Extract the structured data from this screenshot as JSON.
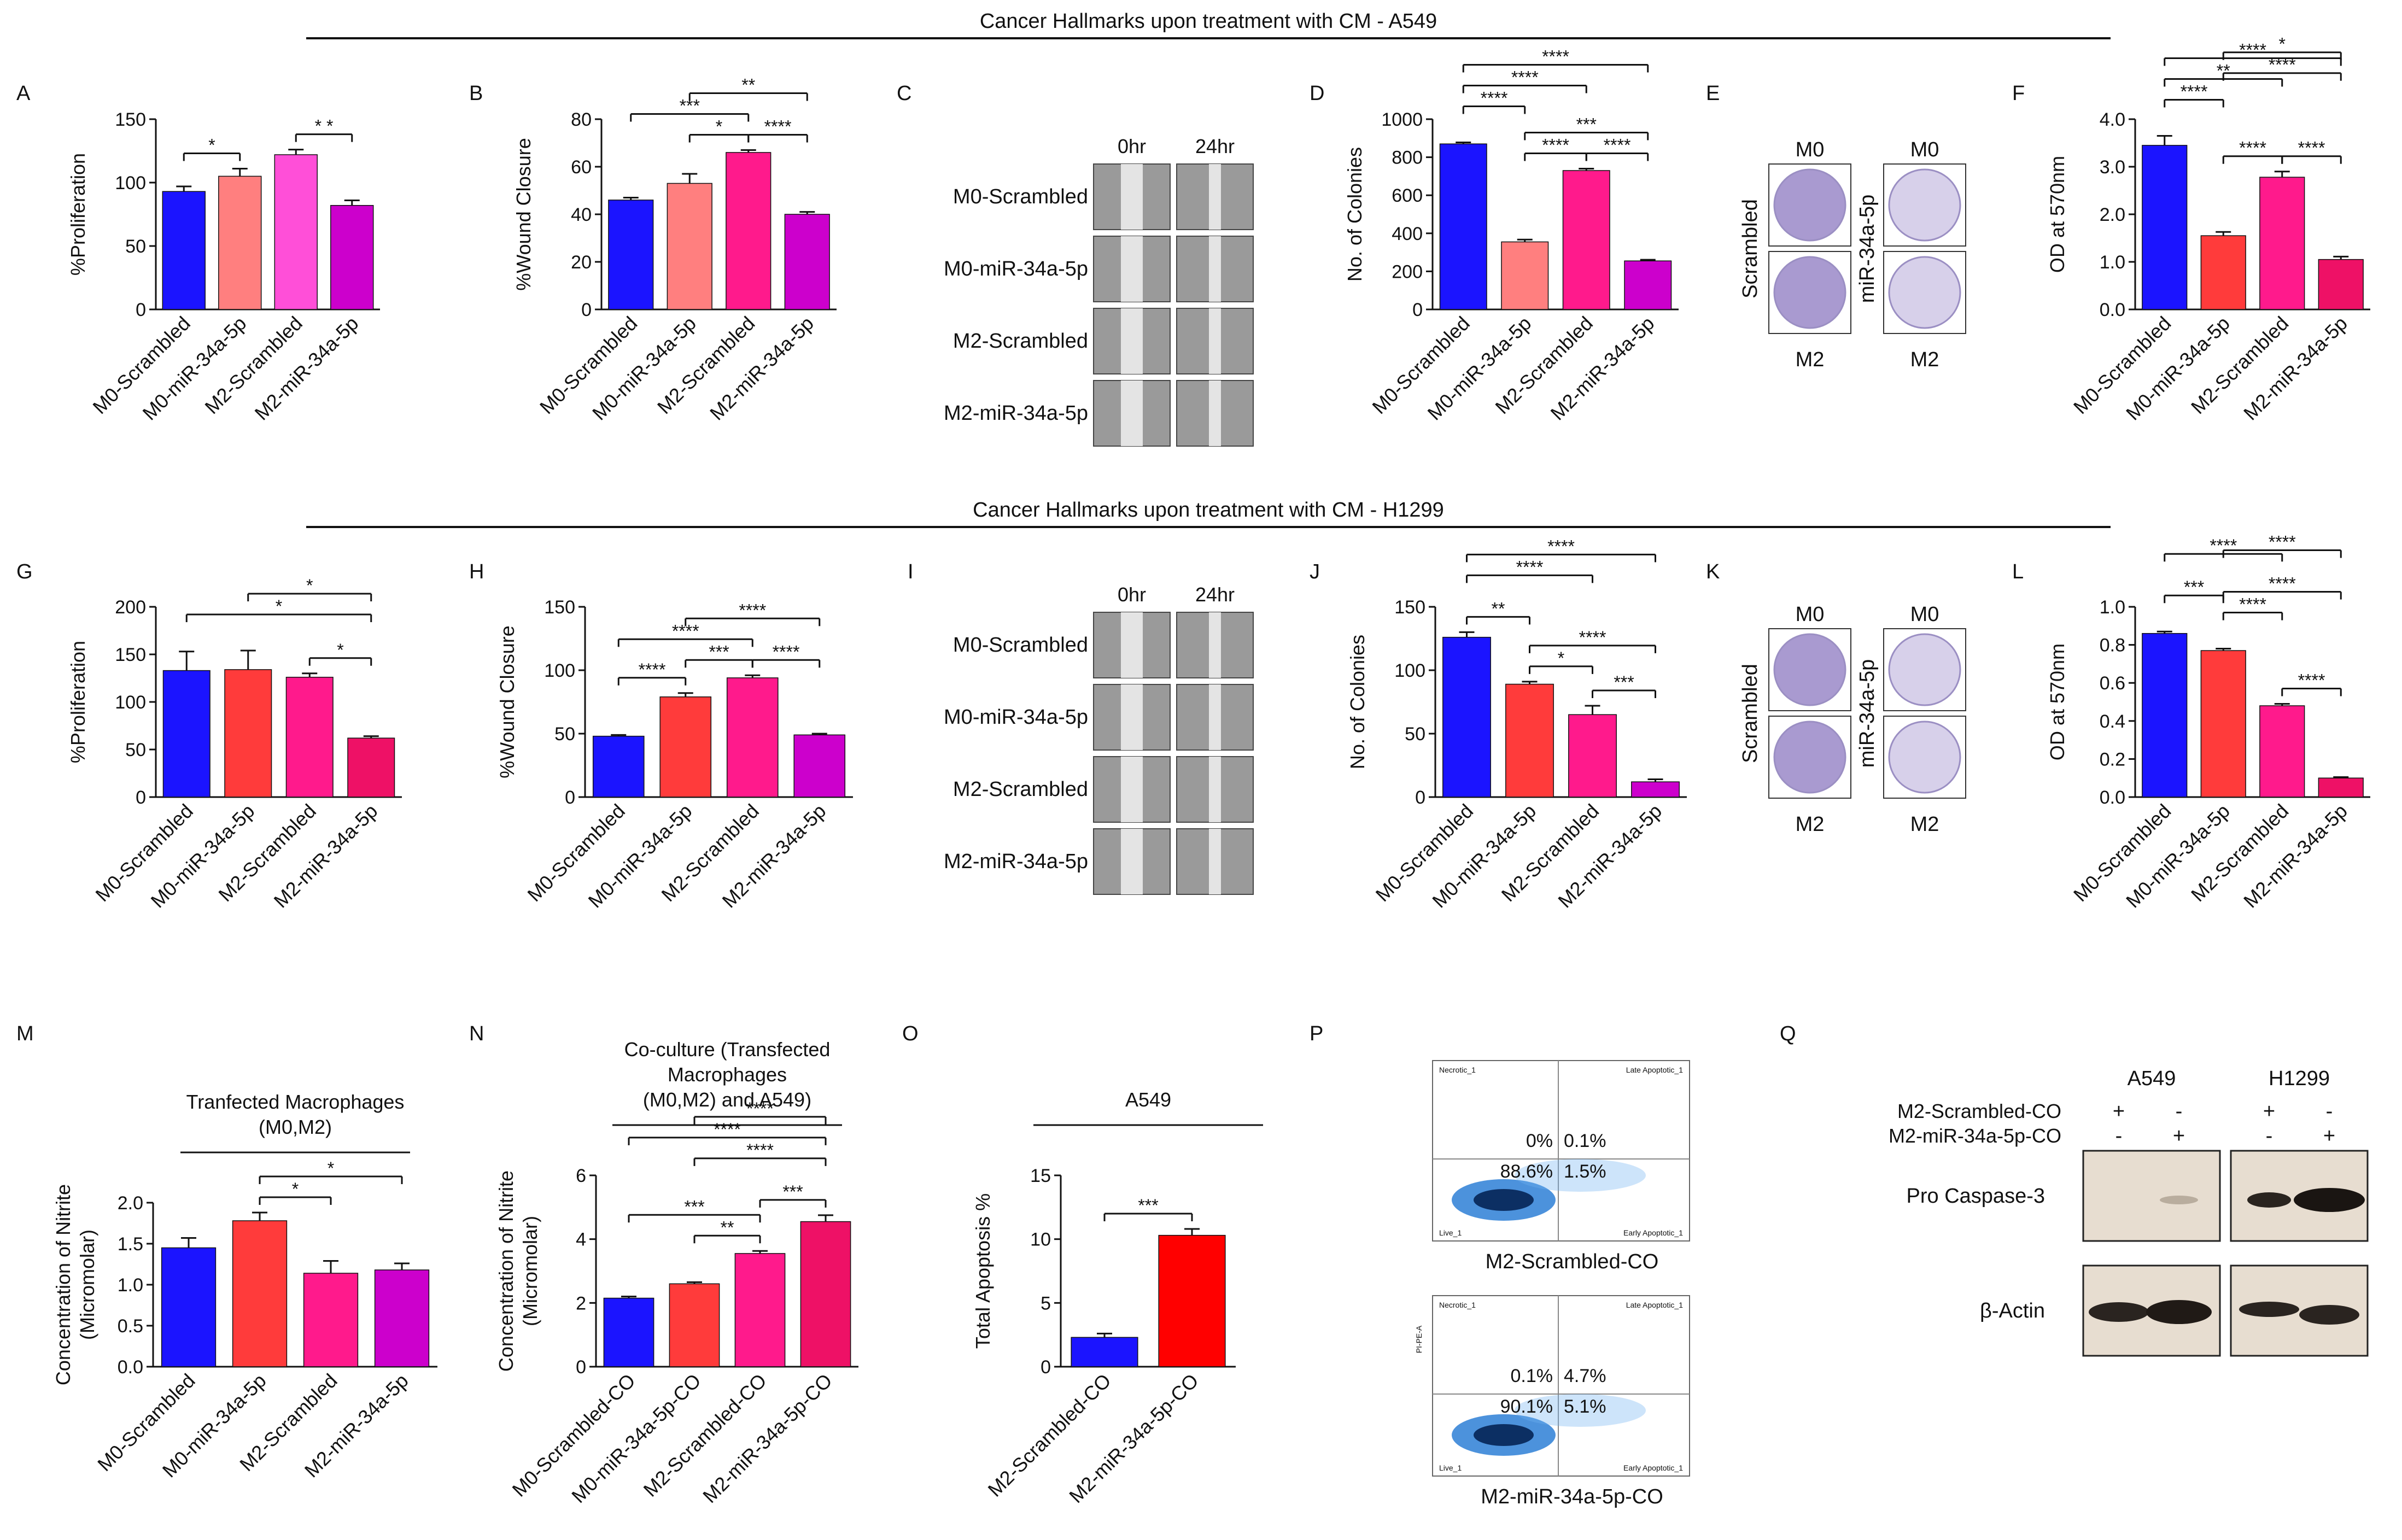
{
  "section_titles": {
    "a549": "Cancer Hallmarks upon treatment with CM - A549",
    "h1299": "Cancer Hallmarks upon treatment with CM - H1299"
  },
  "panel_letters": [
    "A",
    "B",
    "C",
    "D",
    "E",
    "F",
    "G",
    "H",
    "I",
    "J",
    "K",
    "L",
    "M",
    "N",
    "O",
    "P",
    "Q"
  ],
  "colors": {
    "blue": "#1b14ff",
    "salmon": "#ff7f7f",
    "pink": "#ff4fd8",
    "magenta": "#cc00cc",
    "red": "#ff3b3b",
    "hotpink": "#ff1a8c",
    "deeppink": "#ee1166",
    "purple": "#b300b3",
    "pure_red": "#ff0000"
  },
  "wound_images_a549": {
    "time_labels": [
      "0hr",
      "24hr"
    ],
    "row_labels": [
      "M0-Scrambled",
      "M0-miR-34a-5p",
      "M2-Scrambled",
      "M2-miR-34a-5p"
    ]
  },
  "wound_images_h1299": {
    "time_labels": [
      "0hr",
      "24hr"
    ],
    "row_labels": [
      "M0-Scrambled",
      "M0-miR-34a-5p",
      "M2-Scrambled",
      "M2-miR-34a-5p"
    ]
  },
  "colony_images_a549": {
    "top_labels": [
      "M0",
      "M0"
    ],
    "bottom_labels": [
      "M2",
      "M2"
    ],
    "left_label": "Scrambled",
    "mid_label": "miR-34a-5p"
  },
  "colony_images_h1299": {
    "top_labels": [
      "M0",
      "M0"
    ],
    "bottom_labels": [
      "M2",
      "M2"
    ],
    "left_label": "Scrambled",
    "mid_label": "miR-34a-5p"
  },
  "flow": {
    "top": {
      "caption": "M2-Scrambled-CO",
      "q_ul": "0%",
      "q_ur": "0.1%",
      "q_ll": "88.6%",
      "q_lr": "1.5%",
      "necrotic": "Necrotic_1",
      "late": "Late Apoptotic_1",
      "early": "Early Apoptotic_1",
      "live": "Live_1"
    },
    "bottom": {
      "caption": "M2-miR-34a-5p-CO",
      "q_ul": "0.1%",
      "q_ur": "4.7%",
      "q_ll": "90.1%",
      "q_lr": "5.1%",
      "necrotic": "Necrotic_1",
      "late": "Late Apoptotic_1",
      "early": "Early Apoptotic_1",
      "live": "Live_1",
      "yaxis": "PI-PE-A"
    }
  },
  "western": {
    "cell_lines": [
      "A549",
      "H1299"
    ],
    "row1_label": "M2-Scrambled-CO",
    "row2_label": "M2-miR-34a-5p-CO",
    "row1_signs": [
      "+",
      "-",
      "+",
      "-"
    ],
    "row2_signs": [
      "-",
      "+",
      "-",
      "+"
    ],
    "band_labels": [
      "Pro Caspase-3",
      "β-Actin"
    ]
  },
  "chart_data": [
    {
      "id": "A",
      "type": "bar",
      "categories": [
        "M0-Scrambled",
        "M0-miR-34a-5p",
        "M2-Scrambled",
        "M2-miR-34a-5p"
      ],
      "values": [
        93,
        105,
        122,
        82
      ],
      "errors": [
        4,
        6,
        4,
        4
      ],
      "ylabel": "%Proliferation",
      "ylim": [
        0,
        150
      ],
      "yticks": [
        0,
        50,
        100,
        150
      ],
      "colors": [
        "#1b14ff",
        "#ff7f7f",
        "#ff4fd8",
        "#cc00cc"
      ],
      "sig": [
        {
          "a": 0,
          "b": 1,
          "label": "*",
          "level": 0
        },
        {
          "a": 2,
          "b": 3,
          "label": "* *",
          "level": 0
        }
      ]
    },
    {
      "id": "B",
      "type": "bar",
      "categories": [
        "M0-Scrambled",
        "M0-miR-34a-5p",
        "M2-Scrambled",
        "M2-miR-34a-5p"
      ],
      "values": [
        46,
        53,
        66,
        40
      ],
      "errors": [
        1,
        4,
        1,
        1
      ],
      "ylabel": "%Wound Closure",
      "ylim": [
        0,
        80
      ],
      "yticks": [
        0,
        20,
        40,
        60,
        80
      ],
      "colors": [
        "#1b14ff",
        "#ff7f7f",
        "#ff1a8c",
        "#cc00cc"
      ],
      "sig": [
        {
          "a": 1,
          "b": 2,
          "label": "*",
          "level": 0
        },
        {
          "a": 2,
          "b": 3,
          "label": "****",
          "level": 0
        },
        {
          "a": 0,
          "b": 2,
          "label": "***",
          "level": 1
        },
        {
          "a": 1,
          "b": 3,
          "label": "**",
          "level": 2
        }
      ]
    },
    {
      "id": "D",
      "type": "bar",
      "categories": [
        "M0-Scrambled",
        "M0-miR-34a-5p",
        "M2-Scrambled",
        "M2-miR-34a-5p"
      ],
      "values": [
        870,
        355,
        730,
        255
      ],
      "errors": [
        8,
        12,
        10,
        6
      ],
      "ylabel": "No. of Colonies",
      "ylim": [
        0,
        1000
      ],
      "yticks": [
        0,
        200,
        400,
        600,
        800,
        1000
      ],
      "colors": [
        "#1b14ff",
        "#ff7f7f",
        "#ff1a8c",
        "#cc00cc"
      ],
      "sig": [
        {
          "a": 1,
          "b": 2,
          "label": "****",
          "level": 0
        },
        {
          "a": 2,
          "b": 3,
          "label": "****",
          "level": 0
        },
        {
          "a": 0,
          "b": 1,
          "label": "****",
          "level": 1
        },
        {
          "a": 1,
          "b": 3,
          "label": "***",
          "level": 1
        },
        {
          "a": 0,
          "b": 2,
          "label": "****",
          "level": 2
        },
        {
          "a": 0,
          "b": 3,
          "label": "****",
          "level": 3
        }
      ]
    },
    {
      "id": "F",
      "type": "bar",
      "categories": [
        "M0-Scrambled",
        "M0-miR-34a-5p",
        "M2-Scrambled",
        "M2-miR-34a-5p"
      ],
      "values": [
        3.45,
        1.55,
        2.78,
        1.05
      ],
      "errors": [
        0.2,
        0.08,
        0.12,
        0.06
      ],
      "ylabel": "OD at 570nm",
      "ylim": [
        0,
        4
      ],
      "yticks": [
        0,
        1,
        2,
        3,
        4
      ],
      "decimals": 1,
      "colors": [
        "#1b14ff",
        "#ff3b3b",
        "#ff1a8c",
        "#ee1166"
      ],
      "sig": [
        {
          "a": 1,
          "b": 2,
          "label": "****",
          "level": 0
        },
        {
          "a": 2,
          "b": 3,
          "label": "****",
          "level": 0
        },
        {
          "a": 0,
          "b": 1,
          "label": "****",
          "level": 1
        },
        {
          "a": 0,
          "b": 2,
          "label": "**",
          "level": 2
        },
        {
          "a": 0,
          "b": 3,
          "label": "****",
          "level": 3
        },
        {
          "a": 1,
          "b": 3,
          "label": "****",
          "level": 4
        },
        {
          "a": 1,
          "b": 3,
          "label": "*",
          "level": 5
        }
      ]
    },
    {
      "id": "G",
      "type": "bar",
      "categories": [
        "M0-Scrambled",
        "M0-miR-34a-5p",
        "M2-Scrambled",
        "M2-miR-34a-5p"
      ],
      "values": [
        133,
        134,
        126,
        62
      ],
      "errors": [
        20,
        20,
        4,
        2
      ],
      "ylabel": "%Proliferation",
      "ylim": [
        0,
        200
      ],
      "yticks": [
        0,
        50,
        100,
        150,
        200
      ],
      "colors": [
        "#1b14ff",
        "#ff3b3b",
        "#ff1a8c",
        "#ee1166"
      ],
      "sig": [
        {
          "a": 2,
          "b": 3,
          "label": "*",
          "level": 0
        },
        {
          "a": 0,
          "b": 3,
          "label": "*",
          "level": 1
        },
        {
          "a": 1,
          "b": 3,
          "label": "*",
          "level": 2
        }
      ]
    },
    {
      "id": "H",
      "type": "bar",
      "categories": [
        "M0-Scrambled",
        "M0-miR-34a-5p",
        "M2-Scrambled",
        "M2-miR-34a-5p"
      ],
      "values": [
        48,
        79,
        94,
        49
      ],
      "errors": [
        1,
        3,
        2,
        1
      ],
      "ylabel": "%Wound Closure",
      "ylim": [
        0,
        150
      ],
      "yticks": [
        0,
        50,
        100,
        150
      ],
      "colors": [
        "#1b14ff",
        "#ff3b3b",
        "#ff1a8c",
        "#cc00cc"
      ],
      "sig": [
        {
          "a": 0,
          "b": 1,
          "label": "****",
          "level": 0
        },
        {
          "a": 1,
          "b": 2,
          "label": "***",
          "level": 0
        },
        {
          "a": 2,
          "b": 3,
          "label": "****",
          "level": 0
        },
        {
          "a": 0,
          "b": 2,
          "label": "****",
          "level": 1
        },
        {
          "a": 1,
          "b": 3,
          "label": "****",
          "level": 2
        }
      ]
    },
    {
      "id": "J",
      "type": "bar",
      "categories": [
        "M0-Scrambled",
        "M0-miR-34a-5p",
        "M2-Scrambled",
        "M2-miR-34a-5p"
      ],
      "values": [
        126,
        89,
        65,
        12
      ],
      "errors": [
        4,
        2,
        7,
        2
      ],
      "ylabel": "No. of Colonies",
      "ylim": [
        0,
        150
      ],
      "yticks": [
        0,
        50,
        100,
        150
      ],
      "colors": [
        "#1b14ff",
        "#ff3b3b",
        "#ff1a8c",
        "#cc00cc"
      ],
      "sig": [
        {
          "a": 0,
          "b": 1,
          "label": "**",
          "level": 0
        },
        {
          "a": 1,
          "b": 2,
          "label": "*",
          "level": 0
        },
        {
          "a": 2,
          "b": 3,
          "label": "***",
          "level": 0
        },
        {
          "a": 1,
          "b": 3,
          "label": "****",
          "level": 1
        },
        {
          "a": 0,
          "b": 2,
          "label": "****",
          "level": 2
        },
        {
          "a": 0,
          "b": 3,
          "label": "****",
          "level": 3
        }
      ]
    },
    {
      "id": "L",
      "type": "bar",
      "categories": [
        "M0-Scrambled",
        "M0-miR-34a-5p",
        "M2-Scrambled",
        "M2-miR-34a-5p"
      ],
      "values": [
        0.86,
        0.77,
        0.48,
        0.1
      ],
      "errors": [
        0.01,
        0.01,
        0.01,
        0.005
      ],
      "ylabel": "OD at 570nm",
      "ylim": [
        0,
        1.0
      ],
      "yticks": [
        0,
        0.2,
        0.4,
        0.6,
        0.8,
        1.0
      ],
      "decimals": 1,
      "colors": [
        "#1b14ff",
        "#ff3b3b",
        "#ff1a8c",
        "#ee1166"
      ],
      "sig": [
        {
          "a": 2,
          "b": 3,
          "label": "****",
          "level": 0
        },
        {
          "a": 0,
          "b": 1,
          "label": "***",
          "level": 1
        },
        {
          "a": 1,
          "b": 2,
          "label": "****",
          "level": 1
        },
        {
          "a": 1,
          "b": 3,
          "label": "****",
          "level": 2
        },
        {
          "a": 0,
          "b": 2,
          "label": "****",
          "level": 3
        },
        {
          "a": 1,
          "b": 3,
          "label": "****",
          "level": 4
        }
      ]
    },
    {
      "id": "M",
      "type": "bar",
      "title": "Tranfected Macrophages",
      "subtitle": "(M0,M2)",
      "categories": [
        "M0-Scrambled",
        "M0-miR-34a-5p",
        "M2-Scrambled",
        "M2-miR-34a-5p"
      ],
      "values": [
        1.45,
        1.78,
        1.14,
        1.18
      ],
      "errors": [
        0.12,
        0.1,
        0.15,
        0.08
      ],
      "ylabel": "Concentration of Nitrite",
      "ylabel2": "(Micromolar)",
      "ylim": [
        0,
        2.0
      ],
      "yticks": [
        0,
        0.5,
        1.0,
        1.5,
        2.0
      ],
      "decimals": 1,
      "colors": [
        "#1b14ff",
        "#ff3b3b",
        "#ff1a8c",
        "#cc00cc"
      ],
      "sig": [
        {
          "a": 1,
          "b": 2,
          "label": "*",
          "level": 0
        },
        {
          "a": 1,
          "b": 3,
          "label": "*",
          "level": 1
        }
      ]
    },
    {
      "id": "N",
      "type": "bar",
      "title": "Co-culture (Transfected",
      "subtitle": "Macrophages",
      "subtitle2": "(M0,M2) and A549)",
      "categories": [
        "M0-Scrambled-CO",
        "M0-miR-34a-5p-CO",
        "M2-Scrambled-CO",
        "M2-miR-34a-5p-CO"
      ],
      "values": [
        2.15,
        2.6,
        3.55,
        4.55
      ],
      "errors": [
        0.05,
        0.05,
        0.08,
        0.2
      ],
      "ylabel": "Concentration of Nitrite",
      "ylabel2": "(Micromolar)",
      "ylim": [
        0,
        6
      ],
      "yticks": [
        0,
        2,
        4,
        6
      ],
      "colors": [
        "#1b14ff",
        "#ff3b3b",
        "#ff1a8c",
        "#ee1166"
      ],
      "sig": [
        {
          "a": 1,
          "b": 2,
          "label": "**",
          "level": 0
        },
        {
          "a": 2,
          "b": 3,
          "label": "***",
          "level": 0
        },
        {
          "a": 0,
          "b": 2,
          "label": "***",
          "level": 1
        },
        {
          "a": 1,
          "b": 3,
          "label": "****",
          "level": 2
        },
        {
          "a": 0,
          "b": 3,
          "label": "****",
          "level": 3
        },
        {
          "a": 1,
          "b": 3,
          "label": "****",
          "level": 4
        }
      ]
    },
    {
      "id": "O",
      "type": "bar",
      "title": "A549",
      "categories": [
        "M2-Scrambled-CO",
        "M2-miR-34a-5p-CO"
      ],
      "values": [
        2.3,
        10.3
      ],
      "errors": [
        0.3,
        0.5
      ],
      "ylabel": "Total Apoptosis %",
      "ylim": [
        0,
        15
      ],
      "yticks": [
        0,
        5,
        10,
        15
      ],
      "colors": [
        "#1b14ff",
        "#ff0000"
      ],
      "sig": [
        {
          "a": 0,
          "b": 1,
          "label": "***",
          "level": 0
        }
      ]
    }
  ]
}
